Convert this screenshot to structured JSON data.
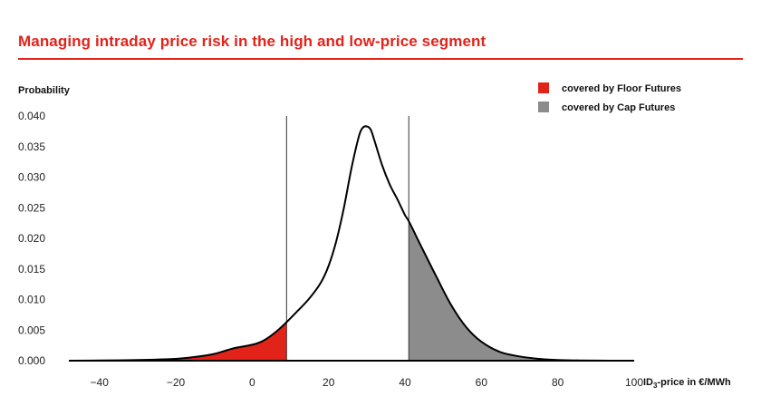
{
  "title": "Managing intraday price risk in the high and low-price segment",
  "chart_data": {
    "type": "area",
    "title": "Managing intraday price risk in the high and low-price segment",
    "ylabel": "Probability",
    "xlabel_main": "ID",
    "xlabel_sub": "3",
    "xlabel_rest": "-price in €/MWh",
    "xlim": [
      -48,
      100
    ],
    "ylim": [
      0,
      0.04
    ],
    "xticks": [
      "-40",
      "-20",
      "0",
      "20",
      "40",
      "60",
      "80",
      "100"
    ],
    "xtick_values": [
      -40,
      -20,
      0,
      20,
      40,
      60,
      80,
      100
    ],
    "yticks": [
      "0.000",
      "0.005",
      "0.010",
      "0.015",
      "0.020",
      "0.025",
      "0.030",
      "0.035",
      "0.040"
    ],
    "ytick_values": [
      0,
      0.005,
      0.01,
      0.015,
      0.02,
      0.025,
      0.03,
      0.035,
      0.04
    ],
    "floor_threshold": 9,
    "cap_threshold": 41,
    "density": {
      "x": [
        -48,
        -40,
        -30,
        -20,
        -15,
        -10,
        -5,
        0,
        3,
        6,
        9,
        12,
        15,
        18,
        20,
        22,
        24,
        26,
        28,
        29,
        30,
        31,
        32,
        34,
        36,
        38,
        40,
        41,
        44,
        48,
        52,
        56,
        60,
        65,
        70,
        75,
        80,
        90,
        100
      ],
      "y": [
        0.0,
        3e-05,
        0.0001,
        0.0003,
        0.0006,
        0.0011,
        0.002,
        0.0026,
        0.0033,
        0.0046,
        0.0063,
        0.0082,
        0.0102,
        0.0128,
        0.0155,
        0.0195,
        0.025,
        0.0315,
        0.0368,
        0.0381,
        0.0383,
        0.0378,
        0.036,
        0.032,
        0.0288,
        0.0264,
        0.0238,
        0.0228,
        0.019,
        0.014,
        0.0092,
        0.0055,
        0.0031,
        0.0014,
        0.0007,
        0.0003,
        0.0001,
        2e-05,
        0.0
      ]
    },
    "series": [
      {
        "name": "covered by Floor Futures",
        "color": "#e2231a"
      },
      {
        "name": "covered by Cap Futures",
        "color": "#8c8c8c"
      }
    ],
    "legend_position": "top-right",
    "grid": false
  }
}
